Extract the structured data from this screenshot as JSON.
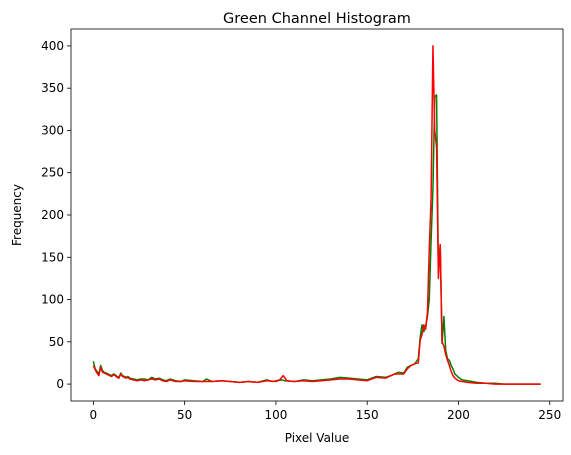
{
  "chart_data": {
    "type": "line",
    "title": "Green Channel Histogram",
    "xlabel": "Pixel Value",
    "ylabel": "Frequency",
    "xlim": [
      -12.25,
      257.25
    ],
    "ylim": [
      -20,
      420
    ],
    "xticks": [
      0,
      50,
      100,
      150,
      200,
      250
    ],
    "yticks": [
      0,
      50,
      100,
      150,
      200,
      250,
      300,
      350,
      400
    ],
    "grid": false,
    "legend": "none",
    "series": [
      {
        "color": "#008000",
        "x": [
          0,
          1,
          2,
          3,
          4,
          5,
          6,
          7,
          8,
          9,
          10,
          11,
          12,
          13,
          14,
          15,
          16,
          17,
          18,
          19,
          20,
          22,
          24,
          26,
          28,
          30,
          32,
          34,
          36,
          38,
          40,
          42,
          45,
          48,
          50,
          55,
          60,
          62,
          65,
          70,
          75,
          80,
          85,
          90,
          95,
          98,
          100,
          103,
          105,
          110,
          115,
          120,
          125,
          130,
          135,
          140,
          145,
          150,
          155,
          160,
          163,
          165,
          167,
          170,
          172,
          174,
          176,
          178,
          179,
          180,
          181,
          182,
          183,
          184,
          185,
          186,
          187,
          188,
          189,
          190,
          191,
          192,
          193,
          194,
          195,
          196,
          197,
          198,
          200,
          202,
          205,
          210,
          215,
          220,
          225,
          230,
          240,
          245
        ],
        "y": [
          27,
          18,
          15,
          12,
          22,
          16,
          14,
          13,
          12,
          11,
          10,
          12,
          11,
          9,
          8,
          13,
          10,
          9,
          8,
          9,
          7,
          6,
          5,
          6,
          6,
          5,
          8,
          6,
          7,
          5,
          4,
          6,
          4,
          3,
          5,
          4,
          3,
          6,
          3,
          4,
          3,
          2,
          3,
          2,
          5,
          3,
          4,
          5,
          4,
          3,
          5,
          4,
          5,
          6,
          8,
          7,
          6,
          5,
          9,
          8,
          10,
          12,
          14,
          13,
          20,
          22,
          24,
          30,
          55,
          70,
          62,
          68,
          80,
          100,
          170,
          230,
          340,
          342,
          130,
          165,
          48,
          80,
          40,
          30,
          28,
          22,
          18,
          12,
          8,
          5,
          4,
          2,
          1,
          1,
          0,
          0,
          0,
          0
        ]
      },
      {
        "color": "#ff0000",
        "x": [
          0,
          1,
          2,
          3,
          4,
          5,
          6,
          7,
          8,
          9,
          10,
          11,
          12,
          13,
          14,
          15,
          16,
          17,
          18,
          19,
          20,
          22,
          24,
          26,
          28,
          30,
          32,
          34,
          36,
          38,
          40,
          42,
          45,
          48,
          50,
          55,
          60,
          65,
          70,
          75,
          80,
          85,
          90,
          95,
          100,
          102,
          104,
          106,
          110,
          115,
          120,
          125,
          130,
          135,
          140,
          145,
          150,
          155,
          160,
          165,
          170,
          172,
          174,
          176,
          178,
          179,
          180,
          181,
          182,
          183,
          184,
          185,
          186,
          187,
          188,
          189,
          190,
          191,
          192,
          193,
          194,
          195,
          196,
          197,
          198,
          200,
          202,
          205,
          210,
          215,
          220,
          225,
          230,
          240,
          245
        ],
        "y": [
          22,
          17,
          13,
          10,
          20,
          14,
          13,
          12,
          11,
          10,
          9,
          11,
          10,
          8,
          7,
          12,
          9,
          8,
          7,
          8,
          6,
          5,
          4,
          5,
          4,
          5,
          6,
          5,
          6,
          4,
          3,
          5,
          3,
          3,
          4,
          3,
          3,
          3,
          4,
          3,
          2,
          3,
          2,
          4,
          3,
          5,
          10,
          4,
          3,
          4,
          3,
          4,
          5,
          6,
          6,
          5,
          4,
          8,
          7,
          12,
          12,
          18,
          22,
          24,
          25,
          52,
          58,
          70,
          65,
          85,
          160,
          220,
          400,
          300,
          280,
          125,
          165,
          50,
          45,
          35,
          28,
          22,
          15,
          10,
          7,
          4,
          3,
          2,
          1,
          1,
          0,
          0,
          0,
          0,
          0
        ]
      }
    ]
  }
}
